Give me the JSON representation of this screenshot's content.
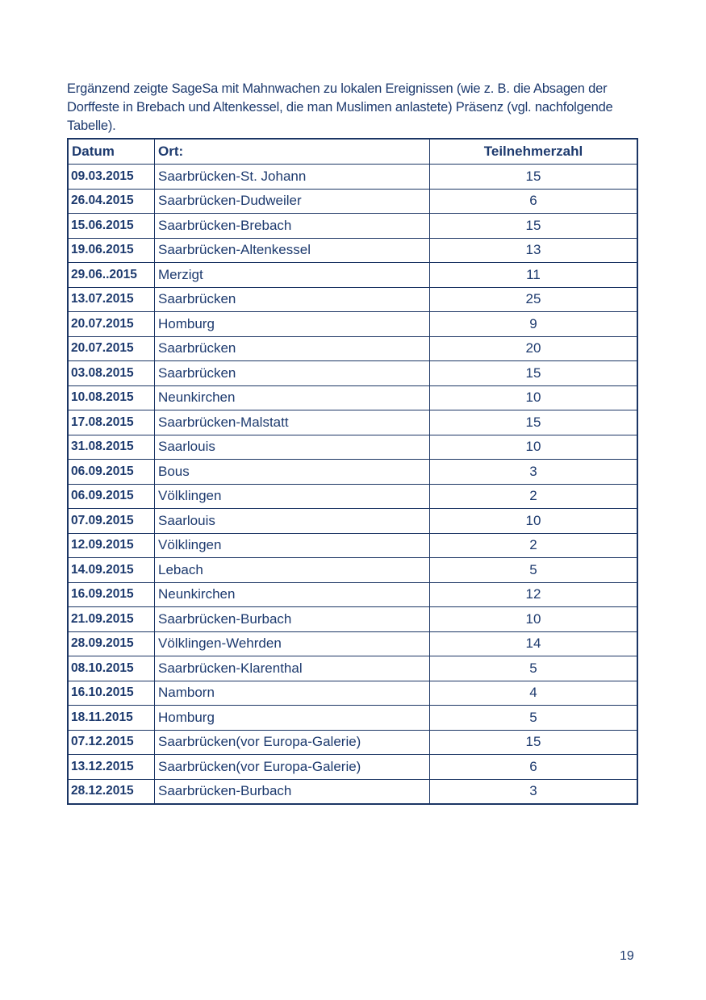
{
  "intro_text": "Ergänzend zeigte SageSa mit Mahnwachen zu lokalen Ereignissen (wie z. B. die Absagen der Dorffeste in Brebach und Altenkessel, die man Muslimen anlastete) Präsenz (vgl. nachfolgende Tabelle).",
  "table": {
    "headers": [
      "Datum",
      "Ort:",
      "Teilnehmerzahl"
    ],
    "rows": [
      [
        "09.03.2015",
        "Saarbrücken-St. Johann",
        "15"
      ],
      [
        "26.04.2015",
        "Saarbrücken-Dudweiler",
        "6"
      ],
      [
        "15.06.2015",
        "Saarbrücken-Brebach",
        "15"
      ],
      [
        "19.06.2015",
        "Saarbrücken-Altenkessel",
        "13"
      ],
      [
        "29.06..2015",
        "Merzigt",
        "11"
      ],
      [
        "13.07.2015",
        "Saarbrücken",
        "25"
      ],
      [
        "20.07.2015",
        "Homburg",
        "9"
      ],
      [
        "20.07.2015",
        "Saarbrücken",
        "20"
      ],
      [
        "03.08.2015",
        "Saarbrücken",
        "15"
      ],
      [
        "10.08.2015",
        "Neunkirchen",
        "10"
      ],
      [
        "17.08.2015",
        "Saarbrücken-Malstatt",
        "15"
      ],
      [
        "31.08.2015",
        "Saarlouis",
        "10"
      ],
      [
        "06.09.2015",
        "Bous",
        "3"
      ],
      [
        "06.09.2015",
        "Völklingen",
        "2"
      ],
      [
        "07.09.2015",
        "Saarlouis",
        "10"
      ],
      [
        "12.09.2015",
        "Völklingen",
        "2"
      ],
      [
        "14.09.2015",
        "Lebach",
        "5"
      ],
      [
        "16.09.2015",
        "Neunkirchen",
        "12"
      ],
      [
        "21.09.2015",
        "Saarbrücken-Burbach",
        "10"
      ],
      [
        "28.09.2015",
        "Völklingen-Wehrden",
        "14"
      ],
      [
        "08.10.2015",
        "Saarbrücken-Klarenthal",
        "5"
      ],
      [
        "16.10.2015",
        "Namborn",
        "4"
      ],
      [
        "18.11.2015",
        "Homburg",
        "5"
      ],
      [
        "07.12.2015",
        "Saarbrücken(vor Europa-Galerie)",
        "15"
      ],
      [
        "13.12.2015",
        "Saarbrücken(vor Europa-Galerie)",
        "6"
      ],
      [
        "28.12.2015",
        "Saarbrücken-Burbach",
        "3"
      ]
    ]
  },
  "page_number": "19"
}
